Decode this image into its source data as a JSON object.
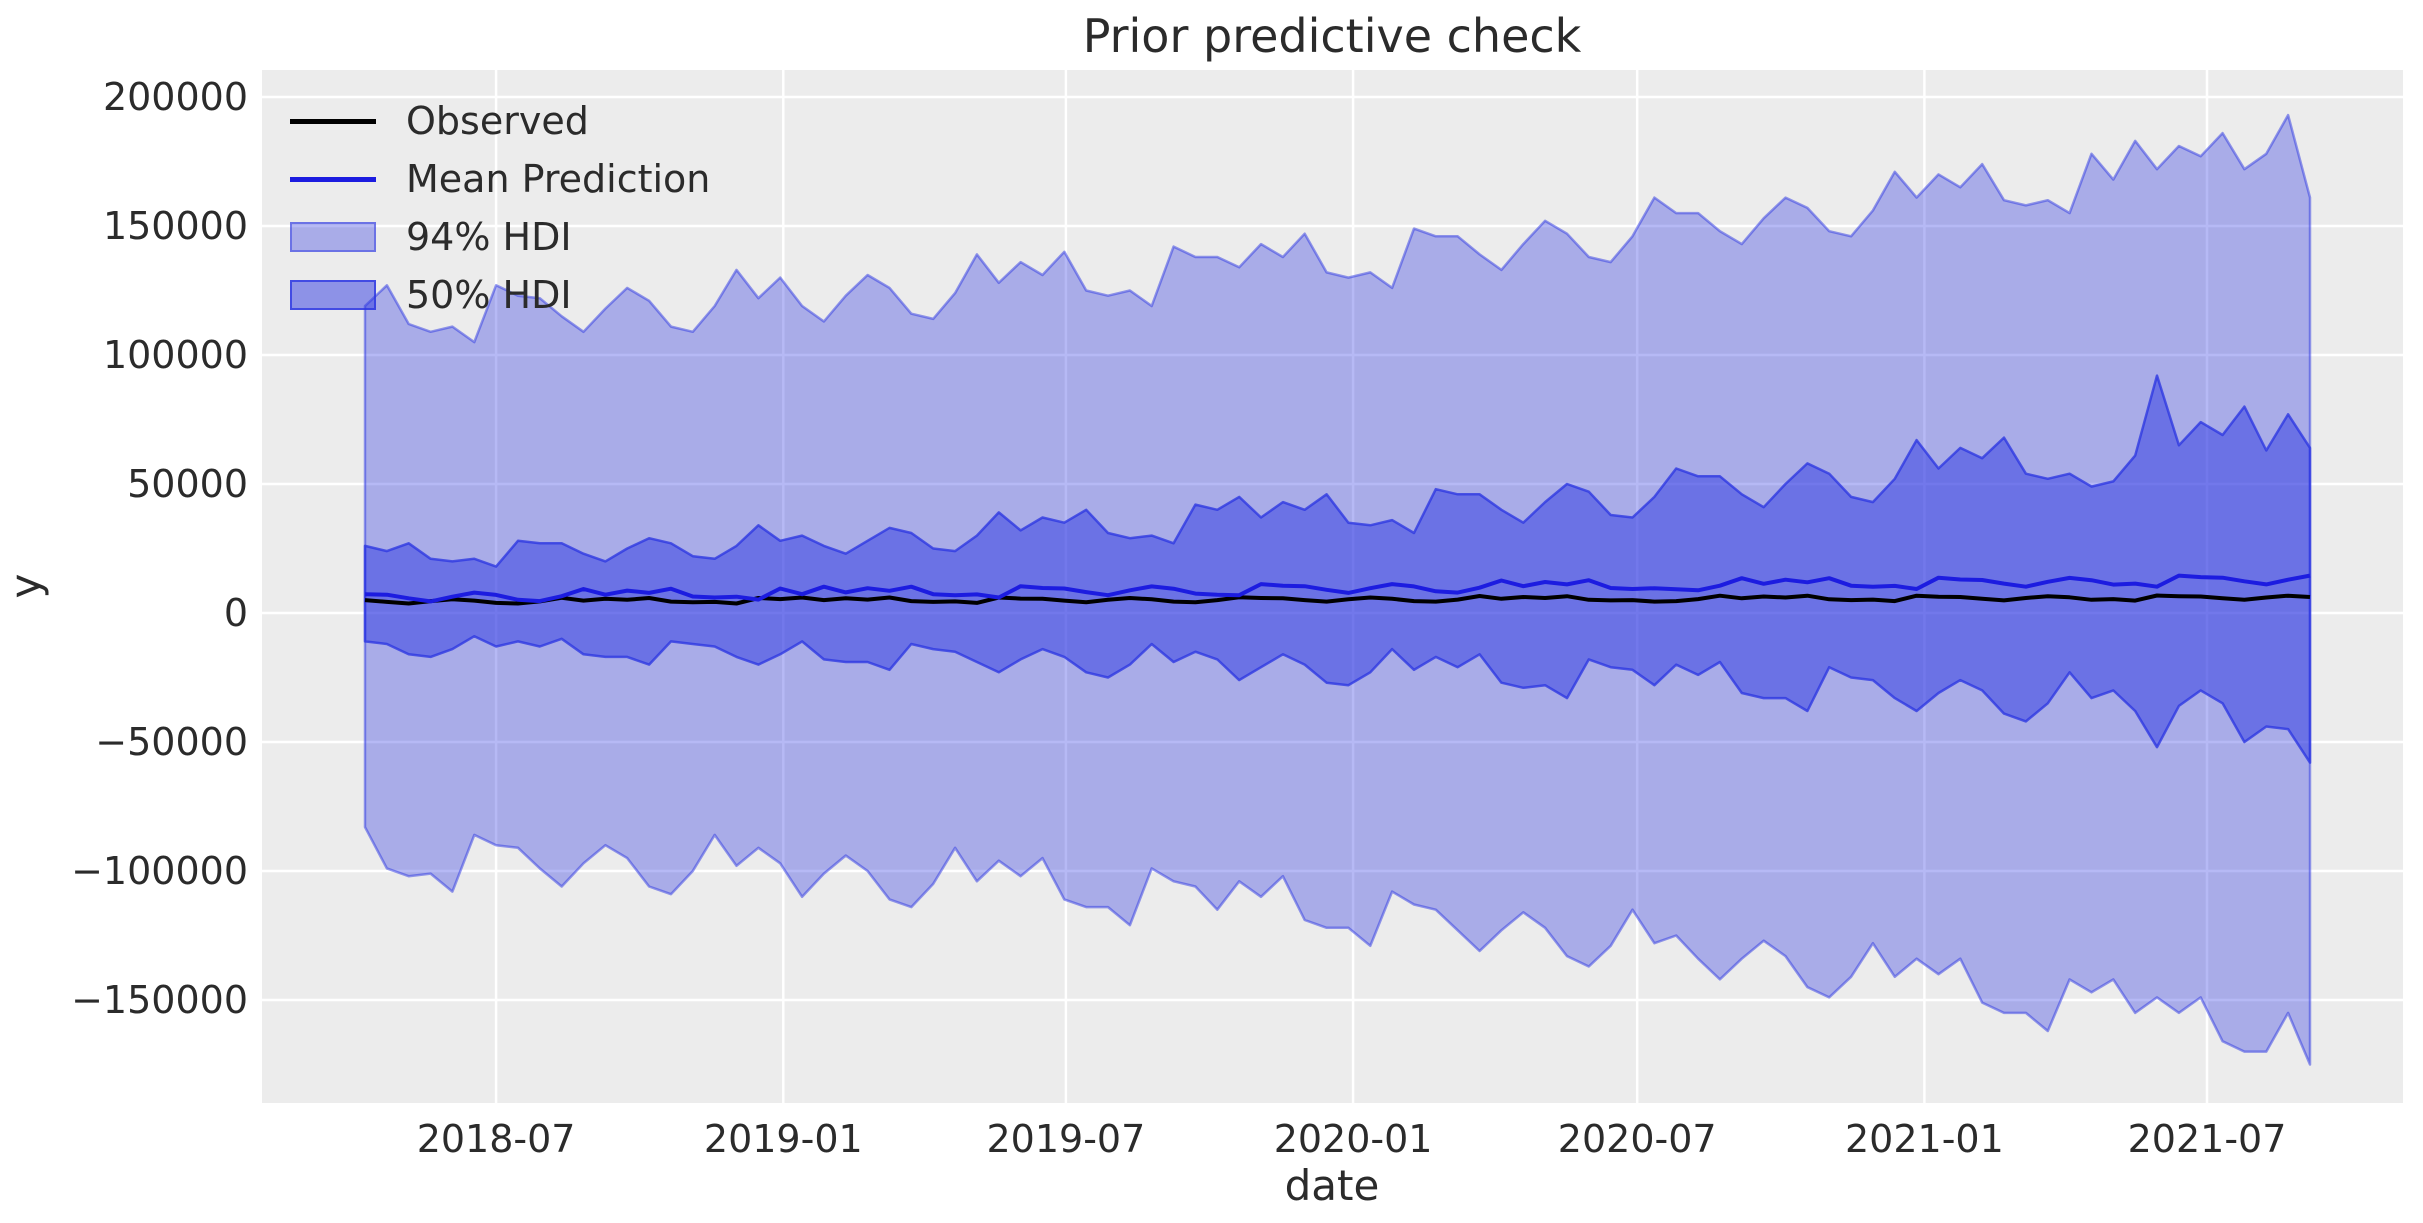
{
  "colors": {
    "figure_bg": "#ffffff",
    "axes_bg": "#ececec",
    "grid": "#ffffff",
    "text": "#2b2b2b",
    "observed_line": "#000000",
    "mean_line": "#1c1ce0",
    "band_base": "#2d37e1",
    "hdi94_fill": "rgba(45,55,225,0.35)",
    "hdi94_edge": "rgba(45,55,225,0.5)",
    "hdi50_fill": "rgba(45,55,225,0.5)",
    "hdi50_edge": "rgba(45,55,225,0.78)"
  },
  "legend": {
    "items": [
      {
        "label": "Observed",
        "swatch": "black-line"
      },
      {
        "label": "Mean Prediction",
        "swatch": "blue-line"
      },
      {
        "label": "94% HDI",
        "swatch": "light-patch"
      },
      {
        "label": "50% HDI",
        "swatch": "dark-patch"
      }
    ]
  },
  "chart_data": {
    "type": "area",
    "title": "Prior predictive check",
    "xlabel": "date",
    "ylabel": "y",
    "grid": true,
    "legend_position": "upper-left",
    "ylim": [
      -190000,
      210000
    ],
    "value_scale": 1000,
    "x_start_date": "2018-04-08",
    "x_step_days": 14,
    "n": 90,
    "x_ticks": [
      {
        "date": "2018-07-01",
        "label": "2018-07"
      },
      {
        "date": "2019-01-01",
        "label": "2019-01"
      },
      {
        "date": "2019-07-01",
        "label": "2019-07"
      },
      {
        "date": "2020-01-01",
        "label": "2020-01"
      },
      {
        "date": "2020-07-01",
        "label": "2020-07"
      },
      {
        "date": "2021-01-01",
        "label": "2021-01"
      },
      {
        "date": "2021-07-01",
        "label": "2021-07"
      }
    ],
    "y_ticks": [
      {
        "value": 200000,
        "label": "200000"
      },
      {
        "value": 150000,
        "label": "150000"
      },
      {
        "value": 100000,
        "label": "100000"
      },
      {
        "value": 50000,
        "label": "50000"
      },
      {
        "value": 0,
        "label": "0"
      },
      {
        "value": -50000,
        "label": "−50000"
      },
      {
        "value": -100000,
        "label": "−100000"
      },
      {
        "value": -150000,
        "label": "−150000"
      }
    ],
    "series": [
      {
        "name": "94% HDI",
        "kind": "band",
        "upper": [
          119,
          127,
          112,
          109,
          111,
          105,
          127,
          123,
          122,
          115,
          109,
          118,
          126,
          121,
          111,
          109,
          119,
          133,
          122,
          130,
          119,
          113,
          123,
          131,
          126,
          116,
          114,
          124,
          139,
          128,
          136,
          131,
          140,
          125,
          123,
          125,
          119,
          142,
          138,
          138,
          134,
          143,
          138,
          147,
          132,
          130,
          132,
          126,
          149,
          146,
          146,
          139,
          133,
          143,
          152,
          147,
          138,
          136,
          146,
          161,
          155,
          155,
          148,
          143,
          153,
          161,
          157,
          148,
          146,
          156,
          171,
          161,
          170,
          165,
          174,
          160,
          158,
          160,
          155,
          178,
          168,
          183,
          172,
          181,
          177,
          186,
          172,
          178,
          193,
          161
        ],
        "lower": [
          -83,
          -99,
          -102,
          -101,
          -108,
          -86,
          -90,
          -91,
          -99,
          -106,
          -97,
          -90,
          -95,
          -106,
          -109,
          -100,
          -86,
          -98,
          -91,
          -97,
          -110,
          -101,
          -94,
          -100,
          -111,
          -114,
          -105,
          -91,
          -104,
          -96,
          -102,
          -95,
          -111,
          -114,
          -114,
          -121,
          -99,
          -104,
          -106,
          -115,
          -104,
          -110,
          -102,
          -119,
          -122,
          -122,
          -129,
          -108,
          -113,
          -115,
          -123,
          -131,
          -123,
          -116,
          -122,
          -133,
          -137,
          -129,
          -115,
          -128,
          -125,
          -134,
          -142,
          -134,
          -127,
          -133,
          -145,
          -149,
          -141,
          -128,
          -141,
          -134,
          -140,
          -134,
          -151,
          -155,
          -155,
          -162,
          -142,
          -147,
          -142,
          -155,
          -149,
          -155,
          -149,
          -166,
          -170,
          -170,
          -155,
          -175
        ]
      },
      {
        "name": "50% HDI",
        "kind": "band",
        "upper": [
          26,
          24,
          27,
          21,
          20,
          21,
          18,
          28,
          27,
          27,
          23,
          20,
          25,
          29,
          27,
          22,
          21,
          26,
          34,
          28,
          30,
          26,
          23,
          28,
          33,
          31,
          25,
          24,
          30,
          39,
          32,
          37,
          35,
          40,
          31,
          29,
          30,
          27,
          42,
          40,
          45,
          37,
          43,
          40,
          46,
          35,
          34,
          36,
          31,
          48,
          46,
          46,
          40,
          35,
          43,
          50,
          47,
          38,
          37,
          45,
          56,
          53,
          53,
          46,
          41,
          50,
          58,
          54,
          45,
          43,
          52,
          67,
          56,
          64,
          60,
          68,
          54,
          52,
          54,
          49,
          51,
          61,
          92,
          65,
          74,
          69,
          80,
          63,
          77,
          64
        ],
        "lower": [
          -11,
          -12,
          -16,
          -17,
          -14,
          -9,
          -13,
          -11,
          -13,
          -10,
          -16,
          -17,
          -17,
          -20,
          -11,
          -12,
          -13,
          -17,
          -20,
          -16,
          -11,
          -18,
          -19,
          -19,
          -22,
          -12,
          -14,
          -15,
          -19,
          -23,
          -18,
          -14,
          -17,
          -23,
          -25,
          -20,
          -12,
          -19,
          -15,
          -18,
          -26,
          -21,
          -16,
          -20,
          -27,
          -28,
          -23,
          -14,
          -22,
          -17,
          -21,
          -16,
          -27,
          -29,
          -28,
          -33,
          -18,
          -21,
          -22,
          -28,
          -20,
          -24,
          -19,
          -31,
          -33,
          -33,
          -38,
          -21,
          -25,
          -26,
          -33,
          -38,
          -31,
          -26,
          -30,
          -39,
          -42,
          -35,
          -23,
          -33,
          -30,
          -38,
          -52,
          -36,
          -30,
          -35,
          -50,
          -44,
          -45,
          -58
        ]
      },
      {
        "name": "Observed",
        "kind": "line",
        "values": [
          5.0,
          4.3,
          3.7,
          4.6,
          5.3,
          4.8,
          3.9,
          3.7,
          4.5,
          5.9,
          4.8,
          5.5,
          5.1,
          5.8,
          4.4,
          4.2,
          4.3,
          3.7,
          5.8,
          5.4,
          6.0,
          5.0,
          5.7,
          5.2,
          6.0,
          4.6,
          4.3,
          4.5,
          3.9,
          6.0,
          5.6,
          5.5,
          4.8,
          4.2,
          5.1,
          5.8,
          5.3,
          4.4,
          4.2,
          5.0,
          6.1,
          5.8,
          5.7,
          5.0,
          4.4,
          5.3,
          6.0,
          5.5,
          4.6,
          4.4,
          5.2,
          6.6,
          5.5,
          6.2,
          5.8,
          6.5,
          5.1,
          4.9,
          5.0,
          4.4,
          4.6,
          5.4,
          6.7,
          5.7,
          6.4,
          6.0,
          6.7,
          5.3,
          5.0,
          5.2,
          4.6,
          6.7,
          6.3,
          6.2,
          5.5,
          4.9,
          5.8,
          6.5,
          6.1,
          5.1,
          5.4,
          4.8,
          6.8,
          6.5,
          6.4,
          5.7,
          5.1,
          6.0,
          6.7,
          6.2
        ]
      },
      {
        "name": "Mean Prediction",
        "kind": "line",
        "values": [
          7.3,
          7.1,
          5.7,
          4.5,
          6.3,
          7.9,
          7.0,
          5.1,
          4.6,
          6.5,
          9.3,
          7.1,
          8.7,
          7.8,
          9.4,
          6.4,
          6.0,
          6.3,
          5.2,
          9.5,
          7.3,
          10.2,
          8.0,
          9.6,
          8.6,
          10.2,
          7.3,
          6.9,
          7.2,
          6.0,
          10.4,
          9.7,
          9.5,
          8.1,
          6.9,
          8.8,
          10.3,
          9.4,
          7.5,
          7.1,
          6.9,
          11.2,
          10.6,
          10.4,
          9.0,
          7.8,
          9.6,
          11.2,
          10.3,
          8.4,
          7.9,
          9.8,
          12.6,
          10.4,
          12.0,
          11.1,
          12.7,
          9.7,
          9.3,
          9.6,
          9.2,
          8.8,
          10.6,
          13.5,
          11.3,
          12.9,
          11.9,
          13.5,
          10.6,
          10.2,
          10.5,
          9.3,
          13.7,
          13.0,
          12.8,
          11.4,
          10.2,
          12.1,
          13.6,
          12.7,
          11.0,
          11.4,
          10.2,
          14.5,
          13.9,
          13.7,
          12.3,
          11.1,
          12.9,
          14.5
        ]
      }
    ]
  }
}
